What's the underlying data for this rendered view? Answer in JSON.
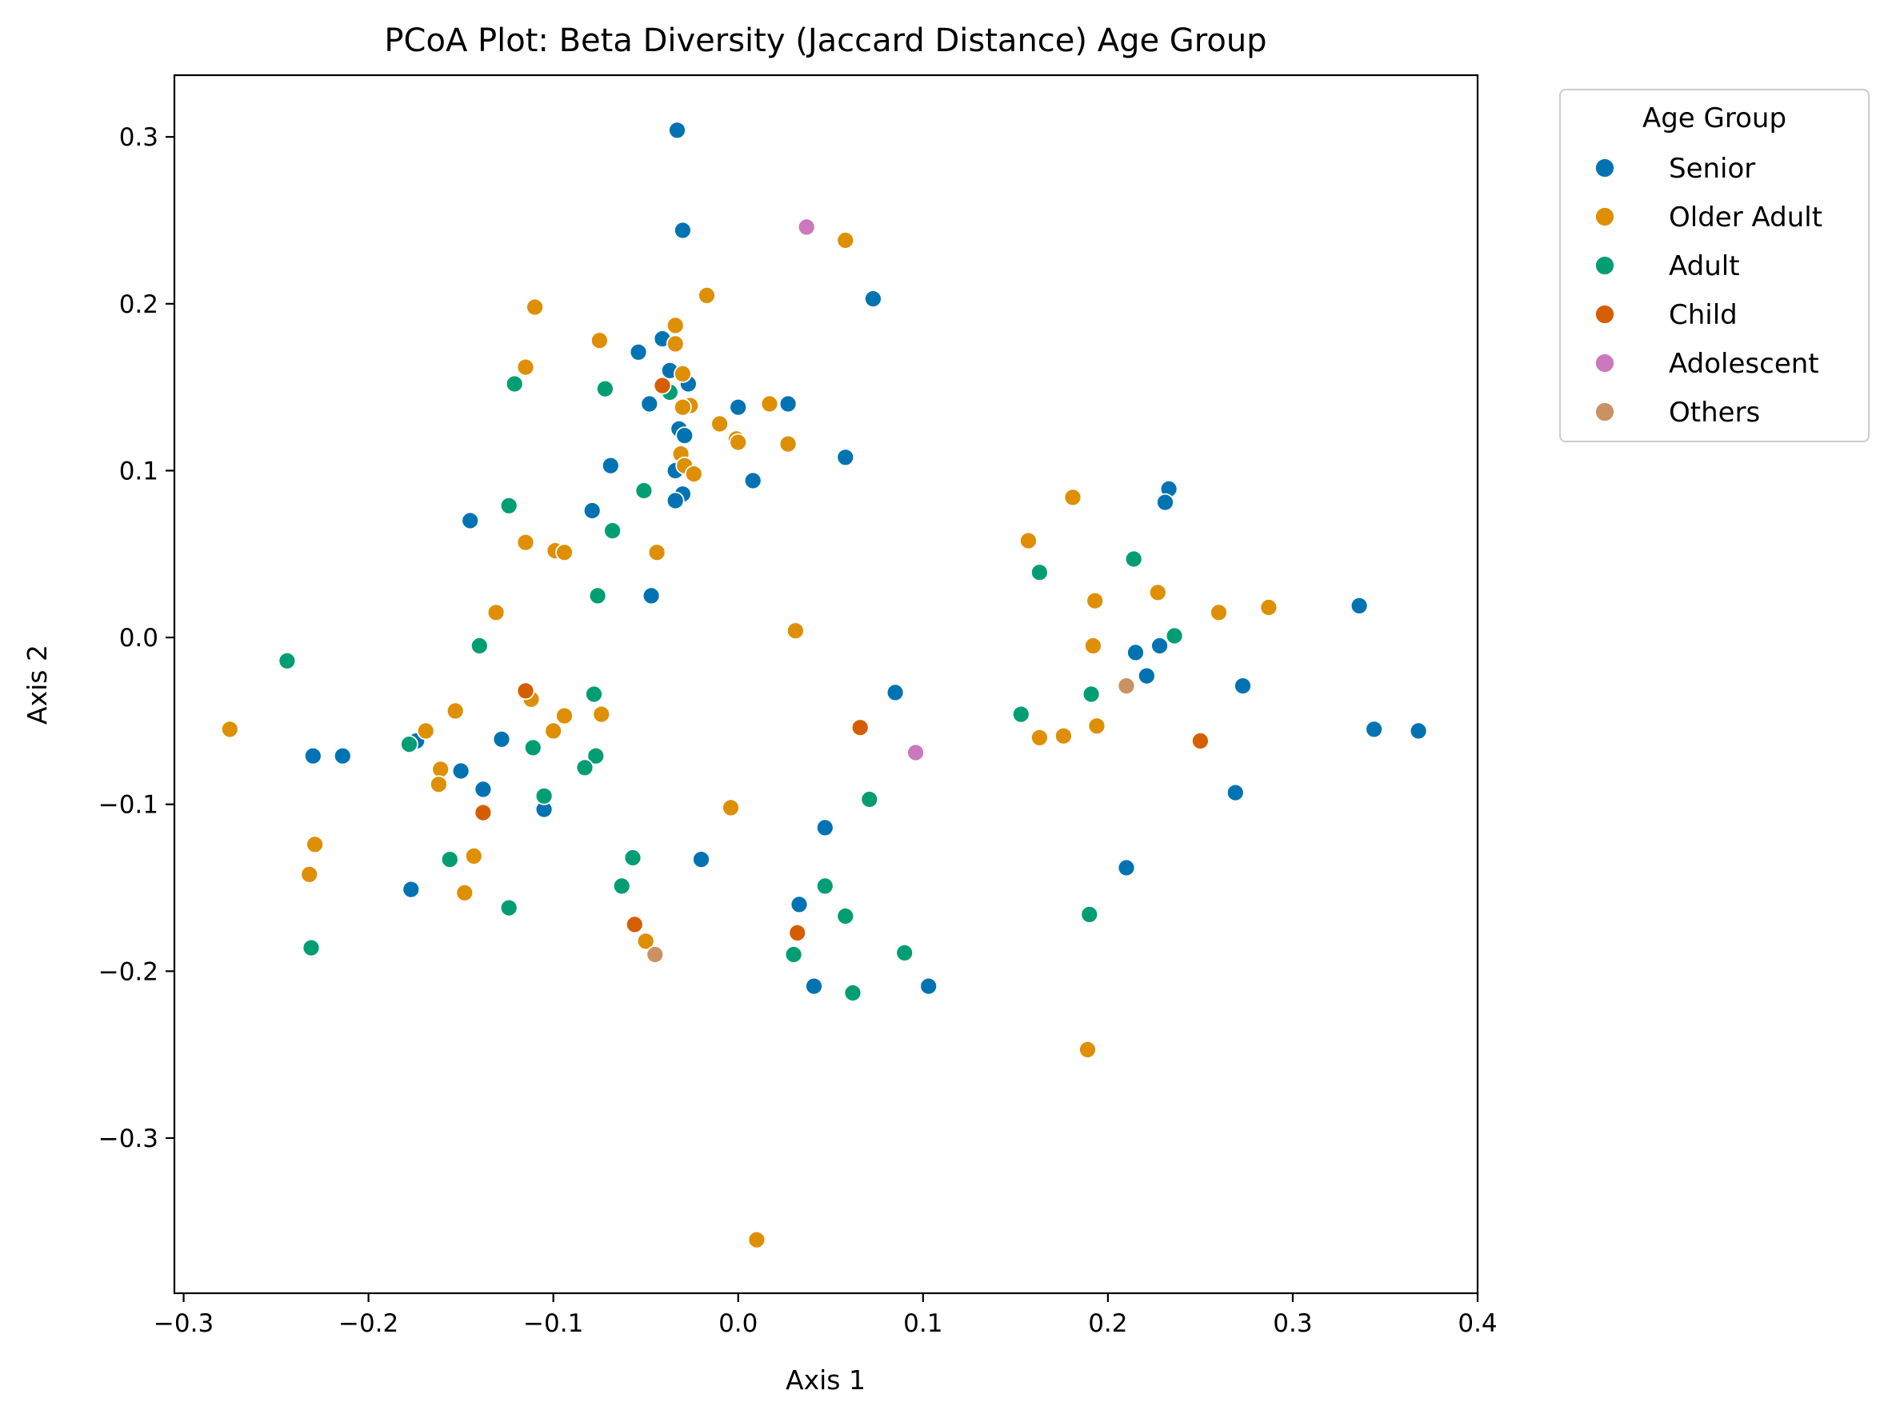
{
  "chart_data": {
    "type": "scatter",
    "title": "PCoA Plot: Beta Diversity (Jaccard Distance) Age Group",
    "xlabel": "Axis 1",
    "ylabel": "Axis 2",
    "xlim": [
      -0.305,
      0.4
    ],
    "ylim": [
      -0.393,
      0.337
    ],
    "xticks": [
      -0.3,
      -0.2,
      -0.1,
      0.0,
      0.1,
      0.2,
      0.3,
      0.4
    ],
    "xtick_labels": [
      "−0.3",
      "−0.2",
      "−0.1",
      "0.0",
      "0.1",
      "0.2",
      "0.3",
      "0.4"
    ],
    "yticks": [
      -0.3,
      -0.2,
      -0.1,
      0.0,
      0.1,
      0.2,
      0.3
    ],
    "ytick_labels": [
      "−0.3",
      "−0.2",
      "−0.1",
      "0.0",
      "0.1",
      "0.2",
      "0.3"
    ],
    "grid": false,
    "legend": {
      "title": "Age Group",
      "placement": "outside-top-right"
    },
    "series": [
      {
        "name": "Senior",
        "color": "#0173b2",
        "points": [
          [
            -0.033,
            0.304
          ],
          [
            -0.03,
            0.244
          ],
          [
            0.073,
            0.203
          ],
          [
            -0.041,
            0.179
          ],
          [
            -0.054,
            0.171
          ],
          [
            -0.037,
            0.16
          ],
          [
            -0.027,
            0.152
          ],
          [
            -0.048,
            0.14
          ],
          [
            0.027,
            0.14
          ],
          [
            0.0,
            0.138
          ],
          [
            -0.032,
            0.125
          ],
          [
            -0.029,
            0.121
          ],
          [
            0.058,
            0.108
          ],
          [
            -0.069,
            0.103
          ],
          [
            -0.034,
            0.1
          ],
          [
            0.008,
            0.094
          ],
          [
            0.233,
            0.089
          ],
          [
            -0.03,
            0.086
          ],
          [
            -0.034,
            0.082
          ],
          [
            0.231,
            0.081
          ],
          [
            -0.079,
            0.076
          ],
          [
            -0.145,
            0.07
          ],
          [
            -0.047,
            0.025
          ],
          [
            0.336,
            0.019
          ],
          [
            0.228,
            -0.005
          ],
          [
            0.215,
            -0.009
          ],
          [
            0.221,
            -0.023
          ],
          [
            0.273,
            -0.029
          ],
          [
            0.085,
            -0.033
          ],
          [
            0.344,
            -0.055
          ],
          [
            0.368,
            -0.056
          ],
          [
            -0.174,
            -0.062
          ],
          [
            -0.128,
            -0.061
          ],
          [
            -0.23,
            -0.071
          ],
          [
            -0.214,
            -0.071
          ],
          [
            -0.15,
            -0.08
          ],
          [
            -0.138,
            -0.091
          ],
          [
            0.269,
            -0.093
          ],
          [
            -0.105,
            -0.103
          ],
          [
            0.047,
            -0.114
          ],
          [
            -0.02,
            -0.133
          ],
          [
            0.21,
            -0.138
          ],
          [
            -0.177,
            -0.151
          ],
          [
            0.033,
            -0.16
          ],
          [
            0.041,
            -0.209
          ],
          [
            0.103,
            -0.209
          ]
        ]
      },
      {
        "name": "Older Adult",
        "color": "#de8f05",
        "points": [
          [
            0.058,
            0.238
          ],
          [
            -0.017,
            0.205
          ],
          [
            -0.11,
            0.198
          ],
          [
            -0.034,
            0.187
          ],
          [
            -0.075,
            0.178
          ],
          [
            -0.034,
            0.176
          ],
          [
            -0.115,
            0.162
          ],
          [
            -0.03,
            0.158
          ],
          [
            0.017,
            0.14
          ],
          [
            -0.026,
            0.139
          ],
          [
            -0.03,
            0.138
          ],
          [
            -0.01,
            0.128
          ],
          [
            -0.001,
            0.119
          ],
          [
            0.0,
            0.117
          ],
          [
            0.027,
            0.116
          ],
          [
            -0.031,
            0.11
          ],
          [
            -0.029,
            0.103
          ],
          [
            -0.024,
            0.098
          ],
          [
            0.181,
            0.084
          ],
          [
            0.157,
            0.058
          ],
          [
            -0.115,
            0.057
          ],
          [
            -0.099,
            0.052
          ],
          [
            -0.094,
            0.051
          ],
          [
            -0.044,
            0.051
          ],
          [
            0.227,
            0.027
          ],
          [
            0.193,
            0.022
          ],
          [
            0.287,
            0.018
          ],
          [
            0.26,
            0.015
          ],
          [
            -0.131,
            0.015
          ],
          [
            0.031,
            0.004
          ],
          [
            0.192,
            -0.005
          ],
          [
            -0.112,
            -0.037
          ],
          [
            -0.153,
            -0.044
          ],
          [
            -0.074,
            -0.046
          ],
          [
            -0.094,
            -0.047
          ],
          [
            -0.275,
            -0.055
          ],
          [
            -0.169,
            -0.056
          ],
          [
            -0.1,
            -0.056
          ],
          [
            0.194,
            -0.053
          ],
          [
            0.176,
            -0.059
          ],
          [
            0.163,
            -0.06
          ],
          [
            -0.161,
            -0.079
          ],
          [
            -0.162,
            -0.088
          ],
          [
            -0.004,
            -0.102
          ],
          [
            -0.229,
            -0.124
          ],
          [
            -0.143,
            -0.131
          ],
          [
            -0.232,
            -0.142
          ],
          [
            -0.148,
            -0.153
          ],
          [
            -0.05,
            -0.182
          ],
          [
            0.189,
            -0.247
          ],
          [
            0.01,
            -0.361
          ]
        ]
      },
      {
        "name": "Adult",
        "color": "#029e73",
        "points": [
          [
            -0.121,
            0.152
          ],
          [
            -0.072,
            0.149
          ],
          [
            -0.037,
            0.147
          ],
          [
            -0.051,
            0.088
          ],
          [
            -0.124,
            0.079
          ],
          [
            -0.068,
            0.064
          ],
          [
            0.214,
            0.047
          ],
          [
            0.163,
            0.039
          ],
          [
            -0.076,
            0.025
          ],
          [
            0.236,
            0.001
          ],
          [
            -0.14,
            -0.005
          ],
          [
            -0.244,
            -0.014
          ],
          [
            -0.078,
            -0.034
          ],
          [
            0.191,
            -0.034
          ],
          [
            0.153,
            -0.046
          ],
          [
            -0.178,
            -0.064
          ],
          [
            -0.111,
            -0.066
          ],
          [
            -0.077,
            -0.071
          ],
          [
            -0.083,
            -0.078
          ],
          [
            -0.105,
            -0.095
          ],
          [
            0.071,
            -0.097
          ],
          [
            -0.156,
            -0.133
          ],
          [
            -0.057,
            -0.132
          ],
          [
            0.047,
            -0.149
          ],
          [
            -0.063,
            -0.149
          ],
          [
            -0.124,
            -0.162
          ],
          [
            0.058,
            -0.167
          ],
          [
            0.19,
            -0.166
          ],
          [
            -0.231,
            -0.186
          ],
          [
            0.03,
            -0.19
          ],
          [
            0.09,
            -0.189
          ],
          [
            0.062,
            -0.213
          ]
        ]
      },
      {
        "name": "Child",
        "color": "#d55e00",
        "points": [
          [
            -0.041,
            0.151
          ],
          [
            -0.115,
            -0.032
          ],
          [
            0.066,
            -0.054
          ],
          [
            0.25,
            -0.062
          ],
          [
            -0.138,
            -0.105
          ],
          [
            -0.056,
            -0.172
          ],
          [
            0.032,
            -0.177
          ]
        ]
      },
      {
        "name": "Adolescent",
        "color": "#cc78bc",
        "points": [
          [
            0.037,
            0.246
          ],
          [
            0.096,
            -0.069
          ]
        ]
      },
      {
        "name": "Others",
        "color": "#ca9161",
        "points": [
          [
            0.21,
            -0.029
          ],
          [
            -0.045,
            -0.19
          ]
        ]
      }
    ]
  }
}
